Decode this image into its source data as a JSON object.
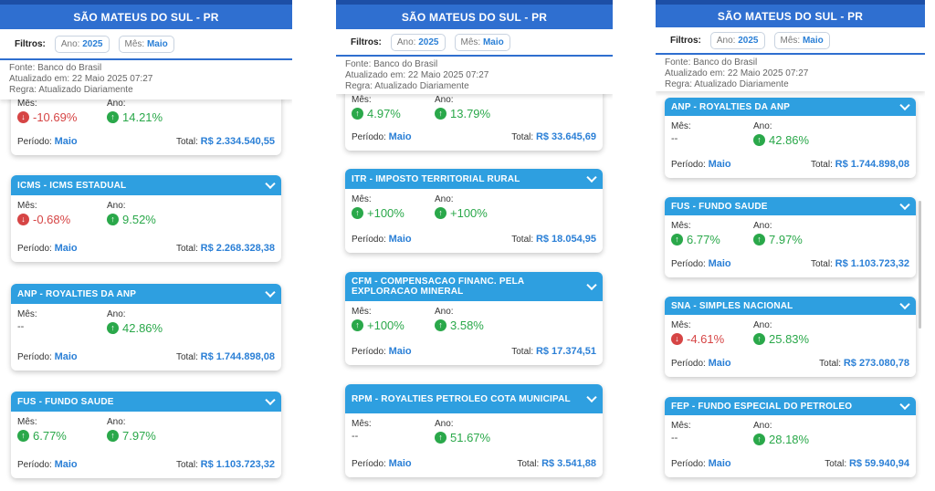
{
  "header": {
    "title": "SÃO MATEUS DO SUL - PR",
    "filters_label": "Filtros:",
    "ano_label": "Ano:",
    "ano_value": "2025",
    "mes_label": "Mês:",
    "mes_value": "Maio"
  },
  "meta": {
    "fonte": "Fonte: Banco do Brasil",
    "atualizado": "Atualizado em: 22 Maio 2025 07:27",
    "regra": "Regra: Atualizado Diariamente"
  },
  "labels": {
    "mes": "Mês:",
    "ano": "Ano:",
    "periodo": "Período:",
    "total": "Total:"
  },
  "colors": {
    "header_blue": "#2f6fd0",
    "card_header": "#2e9fe0",
    "positive": "#2aa84a",
    "negative": "#d64545",
    "value_blue": "#2a7fd6"
  },
  "screens": [
    {
      "cards": [
        {
          "title": "",
          "mes": "-10.69%",
          "mes_dir": "down",
          "ano": "14.21%",
          "ano_dir": "up",
          "periodo": "Maio",
          "total": "R$ 2.334.540,55"
        },
        {
          "title": "ICMS - ICMS ESTADUAL",
          "mes": "-0.68%",
          "mes_dir": "down",
          "ano": "9.52%",
          "ano_dir": "up",
          "periodo": "Maio",
          "total": "R$ 2.268.328,38"
        },
        {
          "title": "ANP - ROYALTIES DA ANP",
          "mes": "--",
          "mes_dir": "none",
          "ano": "42.86%",
          "ano_dir": "up",
          "periodo": "Maio",
          "total": "R$ 1.744.898,08"
        },
        {
          "title": "FUS - FUNDO SAUDE",
          "mes": "6.77%",
          "mes_dir": "up",
          "ano": "7.97%",
          "ano_dir": "up",
          "periodo": "Maio",
          "total": "R$ 1.103.723,32"
        }
      ]
    },
    {
      "cards": [
        {
          "title": "",
          "mes": "4.97%",
          "mes_dir": "up",
          "ano": "13.79%",
          "ano_dir": "up",
          "periodo": "Maio",
          "total": "R$ 33.645,69"
        },
        {
          "title": "ITR - IMPOSTO TERRITORIAL RURAL",
          "mes": "+100%",
          "mes_dir": "up",
          "ano": "+100%",
          "ano_dir": "up",
          "periodo": "Maio",
          "total": "R$ 18.054,95"
        },
        {
          "title": "CFM - COMPENSACAO FINANC. PELA EXPLORACAO MINERAL",
          "mes": "+100%",
          "mes_dir": "up",
          "ano": "3.58%",
          "ano_dir": "up",
          "periodo": "Maio",
          "total": "R$ 17.374,51"
        },
        {
          "title": "RPM - ROYALTIES PETROLEO COTA MUNICIPAL",
          "mes": "--",
          "mes_dir": "none",
          "ano": "51.67%",
          "ano_dir": "up",
          "periodo": "Maio",
          "total": "R$ 3.541,88"
        }
      ]
    },
    {
      "cards": [
        {
          "title": "ANP - ROYALTIES DA ANP",
          "mes": "--",
          "mes_dir": "none",
          "ano": "42.86%",
          "ano_dir": "up",
          "periodo": "Maio",
          "total": "R$ 1.744.898,08"
        },
        {
          "title": "FUS - FUNDO SAUDE",
          "mes": "6.77%",
          "mes_dir": "up",
          "ano": "7.97%",
          "ano_dir": "up",
          "periodo": "Maio",
          "total": "R$ 1.103.723,32"
        },
        {
          "title": "SNA - SIMPLES NACIONAL",
          "mes": "-4.61%",
          "mes_dir": "down",
          "ano": "25.83%",
          "ano_dir": "up",
          "periodo": "Maio",
          "total": "R$ 273.080,78"
        },
        {
          "title": "FEP - FUNDO ESPECIAL DO PETROLEO",
          "mes": "--",
          "mes_dir": "none",
          "ano": "28.18%",
          "ano_dir": "up",
          "periodo": "Maio",
          "total": "R$ 59.940,94"
        }
      ]
    }
  ]
}
